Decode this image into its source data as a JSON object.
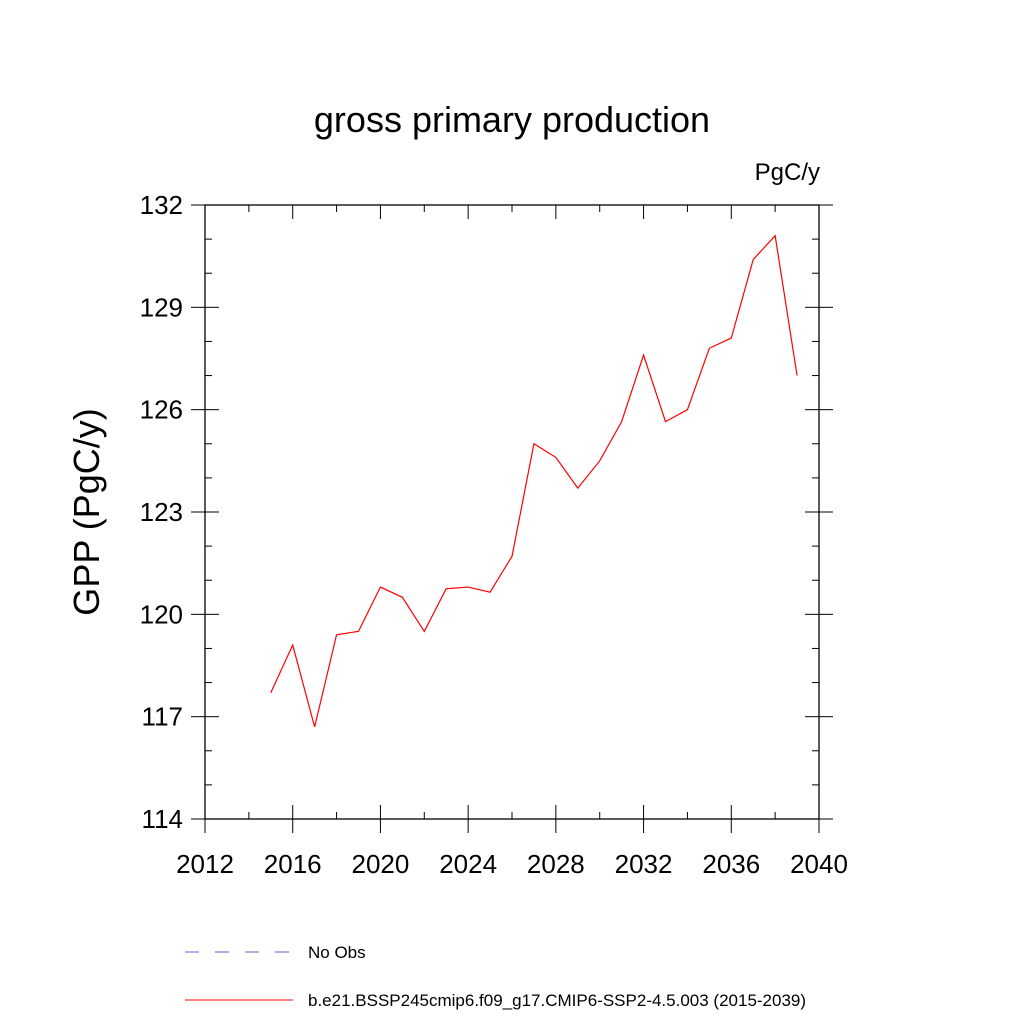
{
  "chart_data": {
    "type": "line",
    "title": "gross primary production",
    "units_label": "PgC/y",
    "ylabel": "GPP  (PgC/y)",
    "xlabel": "",
    "xlim": [
      2012,
      2040
    ],
    "ylim": [
      114,
      132
    ],
    "x_ticks": [
      2012,
      2016,
      2020,
      2024,
      2028,
      2032,
      2036,
      2040
    ],
    "y_ticks": [
      114,
      117,
      120,
      123,
      126,
      129,
      132
    ],
    "x_minor_step": 2,
    "y_minor_step": 1,
    "grid": false,
    "legend_position": "bottom",
    "series": [
      {
        "name": "No Obs",
        "color": "#6a5acd",
        "dashed": true,
        "x": [],
        "values": []
      },
      {
        "name": "b.e21.BSSP245cmip6.f09_g17.CMIP6-SSP2-4.5.003 (2015-2039)",
        "color": "#ff0000",
        "dashed": false,
        "x": [
          2015,
          2016,
          2017,
          2018,
          2019,
          2020,
          2021,
          2022,
          2023,
          2024,
          2025,
          2026,
          2027,
          2028,
          2029,
          2030,
          2031,
          2032,
          2033,
          2034,
          2035,
          2036,
          2037,
          2038,
          2039
        ],
        "values": [
          117.7,
          119.1,
          116.7,
          119.4,
          119.5,
          120.8,
          120.5,
          119.5,
          120.75,
          120.8,
          120.65,
          121.7,
          125.0,
          124.6,
          123.7,
          124.5,
          125.65,
          127.6,
          125.65,
          126.0,
          127.8,
          128.1,
          130.4,
          131.1,
          127.0
        ]
      }
    ]
  }
}
